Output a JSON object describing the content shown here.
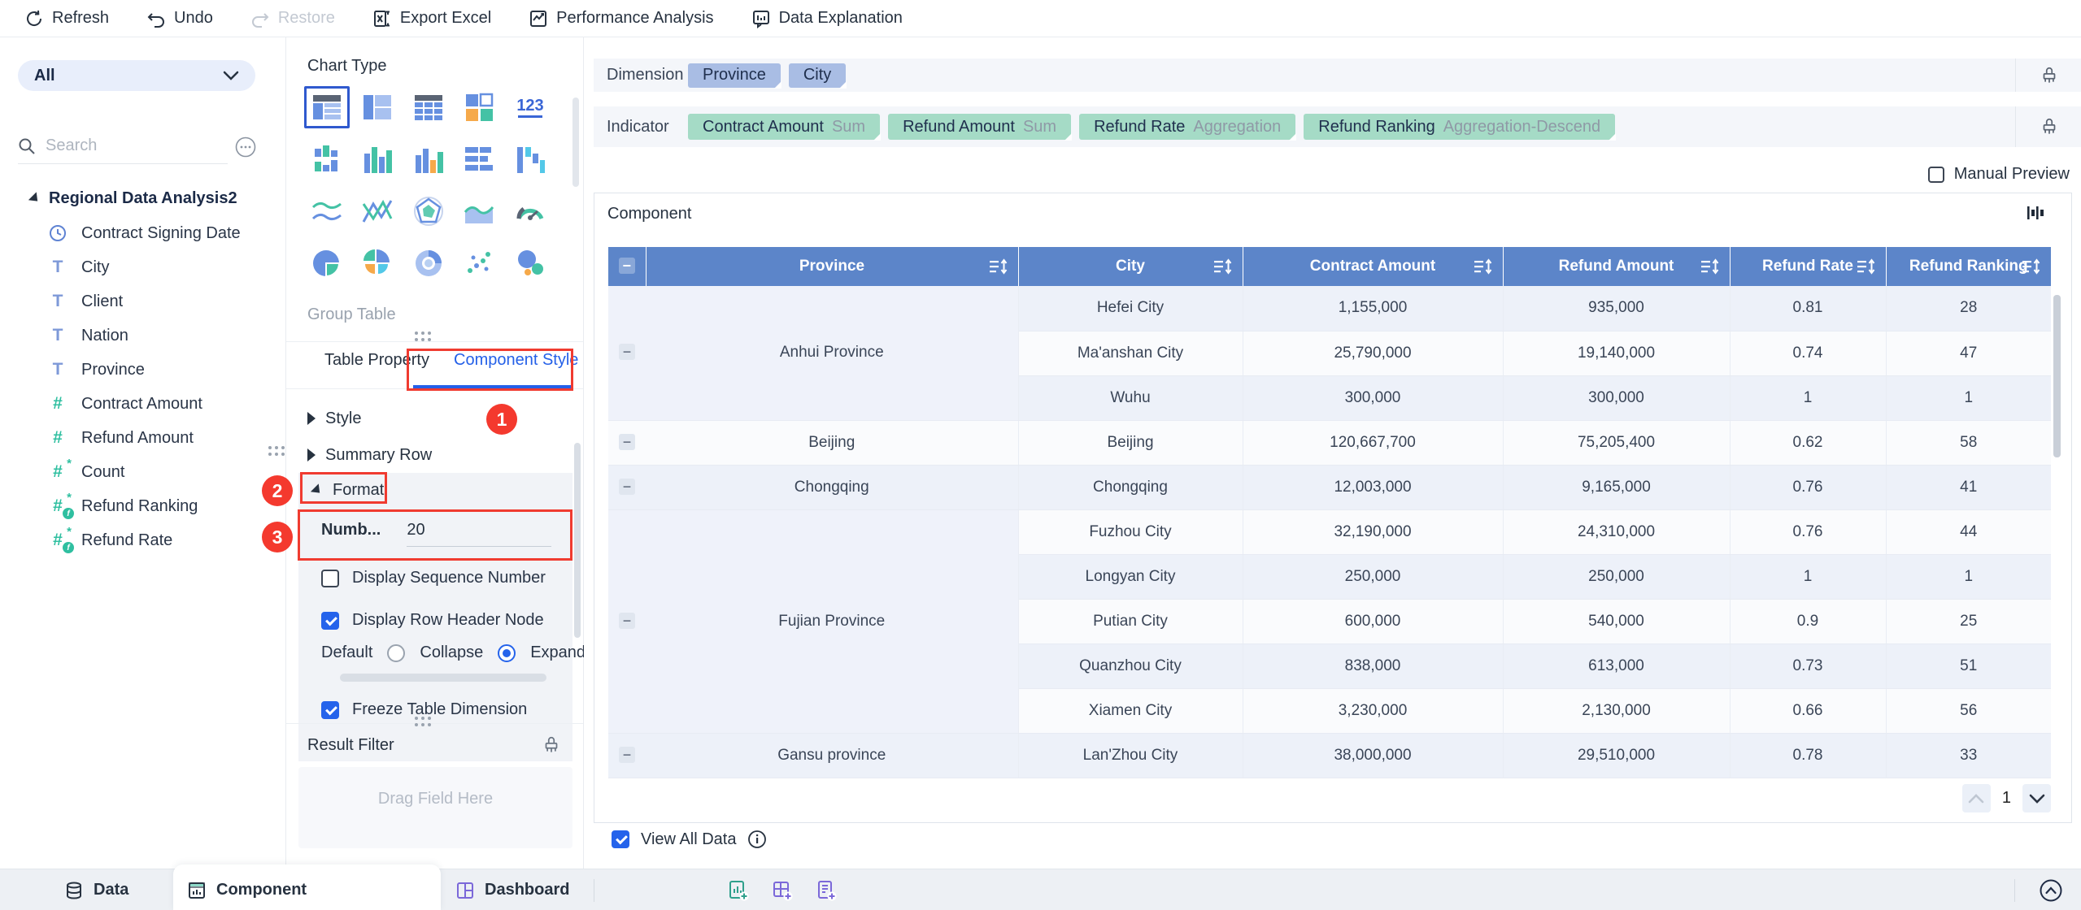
{
  "toolbar": {
    "items": [
      {
        "icon": "refresh-icon",
        "label": "Refresh",
        "disabled": false
      },
      {
        "icon": "undo-icon",
        "label": "Undo",
        "disabled": false
      },
      {
        "icon": "restore-icon",
        "label": "Restore",
        "disabled": true
      },
      {
        "icon": "export-excel-icon",
        "label": "Export Excel",
        "disabled": false
      },
      {
        "icon": "performance-analysis-icon",
        "label": "Performance Analysis",
        "disabled": false
      },
      {
        "icon": "data-explanation-icon",
        "label": "Data Explanation",
        "disabled": false
      }
    ]
  },
  "sidebar": {
    "filter_value": "All",
    "search_placeholder": "Search",
    "tree_title": "Regional Data Analysis2",
    "fields": [
      {
        "label": "Contract Signing Date",
        "type": "date"
      },
      {
        "label": "City",
        "type": "text"
      },
      {
        "label": "Client",
        "type": "text"
      },
      {
        "label": "Nation",
        "type": "text"
      },
      {
        "label": "Province",
        "type": "text"
      },
      {
        "label": "Contract Amount",
        "type": "number"
      },
      {
        "label": "Refund Amount",
        "type": "number"
      },
      {
        "label": "Count",
        "type": "number-star"
      },
      {
        "label": "Refund Ranking",
        "type": "number-fx"
      },
      {
        "label": "Refund Rate",
        "type": "number-fx"
      }
    ]
  },
  "chart_panel": {
    "title": "Chart Type",
    "group_label": "Group Table",
    "chart_types": [
      "group-table",
      "cross-table",
      "detail-table",
      "kpi-grid",
      "number-123",
      "stacked-column",
      "column",
      "column-mixed",
      "bar",
      "waterfall",
      "line",
      "multi-line",
      "radar",
      "area",
      "gauge",
      "pie",
      "rose",
      "donut",
      "scatter",
      "bubble"
    ],
    "selected_index": 0,
    "tabs": [
      {
        "label": "Table Property",
        "active": false
      },
      {
        "label": "Component Style",
        "active": true
      }
    ],
    "sections": {
      "style": "Style",
      "summary": "Summary Row",
      "format": "Format"
    },
    "format": {
      "number_label": "Numb...",
      "number_value": "20",
      "seq_checkbox": {
        "label": "Display Sequence Number",
        "checked": false
      },
      "row_header_checkbox": {
        "label": "Display Row Header Node",
        "checked": true
      },
      "default_label": "Default",
      "radios": [
        {
          "label": "Collapse",
          "selected": false
        },
        {
          "label": "Expand",
          "selected": true
        }
      ],
      "freeze_checkbox": {
        "label": "Freeze Table Dimension",
        "checked": true
      }
    },
    "result_filter": {
      "label": "Result Filter",
      "drop_hint": "Drag Field Here"
    }
  },
  "annotations": {
    "step1": "1",
    "step2": "2",
    "step3": "3"
  },
  "main": {
    "dimension": {
      "label": "Dimension",
      "pills": [
        "Province",
        "City"
      ]
    },
    "indicator": {
      "label": "Indicator",
      "pills": [
        {
          "name": "Contract Amount",
          "agg": "Sum"
        },
        {
          "name": "Refund Amount",
          "agg": "Sum"
        },
        {
          "name": "Refund Rate",
          "agg": "Aggregation"
        },
        {
          "name": "Refund Ranking",
          "agg": "Aggregation-Descend"
        }
      ]
    },
    "manual_preview_label": "Manual Preview",
    "component_title": "Component",
    "pagination": {
      "page": "1"
    },
    "view_all_label": "View All Data"
  },
  "table": {
    "columns": [
      "Province",
      "City",
      "Contract Amount",
      "Refund Amount",
      "Refund Rate",
      "Refund Ranking"
    ],
    "groups": [
      {
        "province": "Anhui Province",
        "rows": [
          {
            "city": "Hefei City",
            "contract": "1,155,000",
            "refund": "935,000",
            "rate": "0.81",
            "ranking": "28"
          },
          {
            "city": "Ma'anshan City",
            "contract": "25,790,000",
            "refund": "19,140,000",
            "rate": "0.74",
            "ranking": "47"
          },
          {
            "city": "Wuhu",
            "contract": "300,000",
            "refund": "300,000",
            "rate": "1",
            "ranking": "1"
          }
        ]
      },
      {
        "province": "Beijing",
        "rows": [
          {
            "city": "Beijing",
            "contract": "120,667,700",
            "refund": "75,205,400",
            "rate": "0.62",
            "ranking": "58"
          }
        ]
      },
      {
        "province": "Chongqing",
        "rows": [
          {
            "city": "Chongqing",
            "contract": "12,003,000",
            "refund": "9,165,000",
            "rate": "0.76",
            "ranking": "41"
          }
        ]
      },
      {
        "province": "Fujian Province",
        "rows": [
          {
            "city": "Fuzhou City",
            "contract": "32,190,000",
            "refund": "24,310,000",
            "rate": "0.76",
            "ranking": "44"
          },
          {
            "city": "Longyan City",
            "contract": "250,000",
            "refund": "250,000",
            "rate": "1",
            "ranking": "1"
          },
          {
            "city": "Putian City",
            "contract": "600,000",
            "refund": "540,000",
            "rate": "0.9",
            "ranking": "25"
          },
          {
            "city": "Quanzhou City",
            "contract": "838,000",
            "refund": "613,000",
            "rate": "0.73",
            "ranking": "51"
          },
          {
            "city": "Xiamen City",
            "contract": "3,230,000",
            "refund": "2,130,000",
            "rate": "0.66",
            "ranking": "56"
          }
        ]
      },
      {
        "province": "Gansu province",
        "rows": [
          {
            "city": "Lan'Zhou City",
            "contract": "38,000,000",
            "refund": "29,510,000",
            "rate": "0.78",
            "ranking": "33"
          }
        ]
      }
    ]
  },
  "bottombar": {
    "tabs": [
      {
        "label": "Data",
        "icon": "database-icon",
        "active": false
      },
      {
        "label": "Component",
        "icon": "component-icon",
        "active": true
      },
      {
        "label": "Dashboard",
        "icon": "dashboard-icon",
        "active": false
      }
    ],
    "actions": [
      "add-component-icon",
      "add-block-icon",
      "add-report-icon"
    ]
  },
  "colors": {
    "accent_blue": "#2563EB",
    "header_blue": "#5C85C9",
    "pill_dimension": "#A9BDE4",
    "pill_indicator": "#A5DBC6",
    "annotation_red": "#F03B30",
    "teal": "#2FBFA0"
  }
}
